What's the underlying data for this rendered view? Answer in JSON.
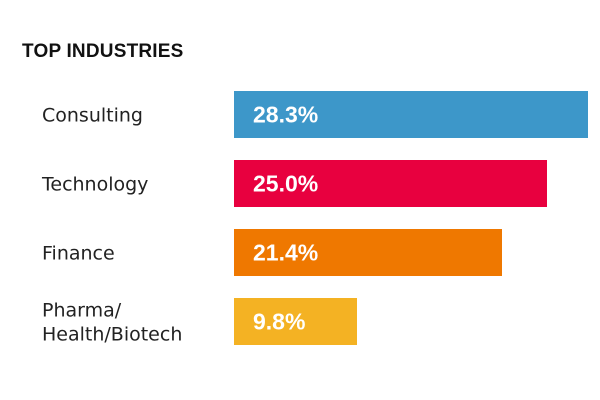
{
  "chart_data": {
    "type": "bar",
    "orientation": "horizontal",
    "title": "TOP INDUSTRIES",
    "categories": [
      [
        "Consulting"
      ],
      [
        "Technology"
      ],
      [
        "Finance"
      ],
      [
        "Pharma/",
        "Health/Biotech"
      ]
    ],
    "values": [
      28.3,
      25.0,
      21.4,
      9.8
    ],
    "value_labels": [
      "28.3%",
      "25.0%",
      "21.4%",
      "9.8%"
    ],
    "colors": [
      "#3d97c9",
      "#e8003f",
      "#ef7800",
      "#f4b223"
    ],
    "xlim": [
      0,
      28.3
    ],
    "unit": "%",
    "grid": false,
    "legend": "none"
  }
}
